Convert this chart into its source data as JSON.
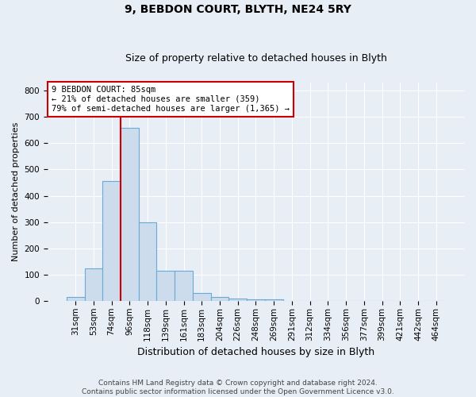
{
  "title1": "9, BEBDON COURT, BLYTH, NE24 5RY",
  "title2": "Size of property relative to detached houses in Blyth",
  "xlabel": "Distribution of detached houses by size in Blyth",
  "ylabel": "Number of detached properties",
  "bar_labels": [
    "31sqm",
    "53sqm",
    "74sqm",
    "96sqm",
    "118sqm",
    "139sqm",
    "161sqm",
    "183sqm",
    "204sqm",
    "226sqm",
    "248sqm",
    "269sqm",
    "291sqm",
    "312sqm",
    "334sqm",
    "356sqm",
    "377sqm",
    "399sqm",
    "421sqm",
    "442sqm",
    "464sqm"
  ],
  "bar_values": [
    15,
    125,
    455,
    660,
    300,
    115,
    115,
    30,
    15,
    10,
    5,
    5,
    0,
    0,
    0,
    0,
    0,
    0,
    0,
    0,
    0
  ],
  "bar_color": "#ccdcec",
  "bar_edge_color": "#6aaad4",
  "vline_x": 2.5,
  "vline_color": "#cc0000",
  "annotation_line1": "9 BEBDON COURT: 85sqm",
  "annotation_line2": "← 21% of detached houses are smaller (359)",
  "annotation_line3": "79% of semi-detached houses are larger (1,365) →",
  "annotation_box_facecolor": "#ffffff",
  "annotation_box_edgecolor": "#cc0000",
  "ylim": [
    0,
    830
  ],
  "yticks": [
    0,
    100,
    200,
    300,
    400,
    500,
    600,
    700,
    800
  ],
  "footer1": "Contains HM Land Registry data © Crown copyright and database right 2024.",
  "footer2": "Contains public sector information licensed under the Open Government Licence v3.0.",
  "bg_color": "#e8eef6",
  "grid_color": "#ffffff",
  "title1_fontsize": 10,
  "title2_fontsize": 9,
  "xlabel_fontsize": 9,
  "ylabel_fontsize": 8,
  "tick_fontsize": 7.5,
  "footer_fontsize": 6.5
}
